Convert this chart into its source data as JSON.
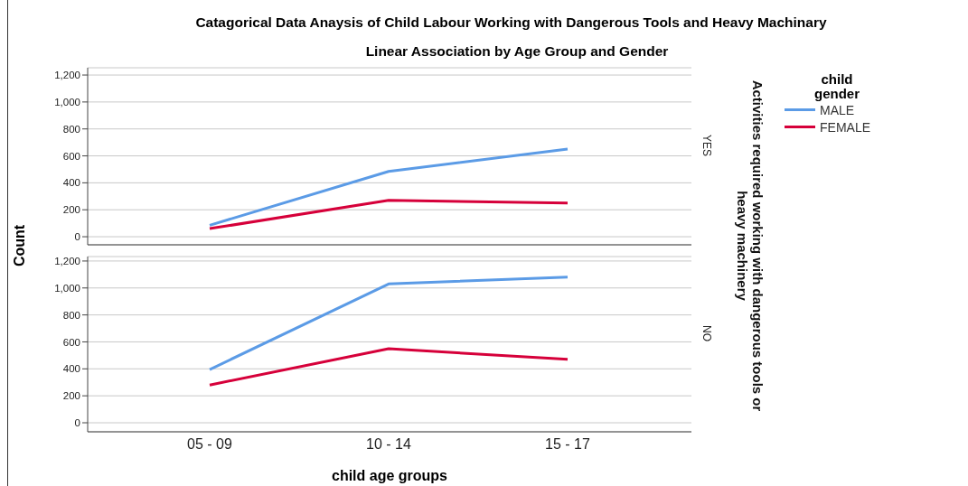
{
  "chart_data": [
    {
      "type": "line",
      "title": "Catagorical Data Anaysis of Child Labour Working with Dangerous Tools and Heavy Machinary",
      "subtitle": "Linear Association by Age Group and Gender",
      "ylabel": "Count",
      "y2label": "YES",
      "legend_title": "child gender",
      "legend": "right",
      "annotations": [
        "Activities required working with dangerous tools or heavy machinery"
      ],
      "categories": [
        null,
        null,
        null
      ],
      "series": [
        {
          "name": "MALE",
          "color": "#5b9be6",
          "values": [
            85,
            485,
            650
          ]
        },
        {
          "name": "FEMALE",
          "color": "#d6003a",
          "values": [
            60,
            270,
            250
          ]
        }
      ],
      "ylim": [
        -60,
        1254
      ],
      "yticks": [
        {
          "value": 0,
          "label": "0"
        },
        {
          "value": 200,
          "label": "200"
        },
        {
          "value": 400,
          "label": "400"
        },
        {
          "value": 600,
          "label": "600"
        },
        {
          "value": 800,
          "label": "800"
        },
        {
          "value": 1000,
          "label": "1,000"
        },
        {
          "value": 1200,
          "label": "1,200"
        }
      ],
      "grid": "y",
      "tick_labels": "y",
      "marker": "none",
      "line_style": "solid"
    },
    {
      "type": "line",
      "xlabel": "child age groups",
      "y2label": "NO",
      "categories": [
        "05 - 09",
        "10 - 14",
        "15 - 17"
      ],
      "series": [
        {
          "color": "#5b9be6",
          "values": [
            395,
            1030,
            1080
          ]
        },
        {
          "color": "#d6003a",
          "values": [
            280,
            550,
            470
          ]
        }
      ],
      "ylim": [
        -67,
        1233
      ],
      "yticks": [
        {
          "value": 0,
          "label": "0"
        },
        {
          "value": 200,
          "label": "200"
        },
        {
          "value": 400,
          "label": "400"
        },
        {
          "value": 600,
          "label": "600"
        },
        {
          "value": 800,
          "label": "800"
        },
        {
          "value": 1000,
          "label": "1,000"
        },
        {
          "value": 1200,
          "label": "1,200"
        }
      ],
      "grid": "y",
      "marker": "none",
      "line_style": "solid"
    }
  ]
}
